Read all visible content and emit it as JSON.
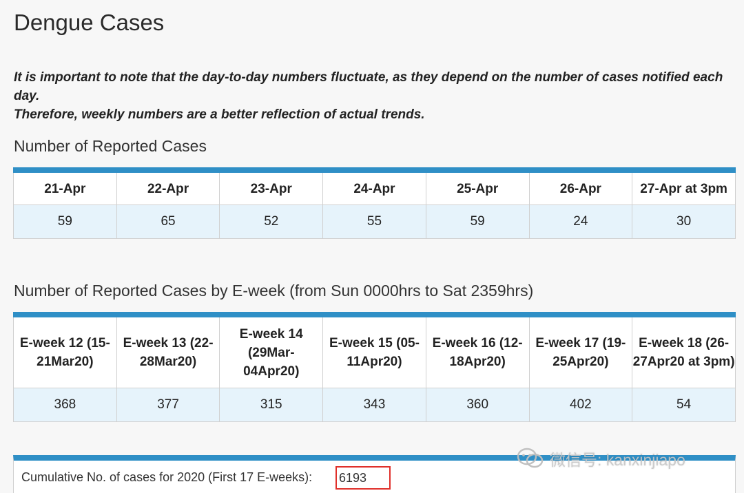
{
  "page": {
    "title": "Dengue Cases",
    "note_line1": "It is important to note that the day-to-day numbers fluctuate, as they depend on the number of cases notified each day.",
    "note_line2": "Therefore, weekly numbers are a better reflection of actual trends."
  },
  "daily": {
    "heading": "Number of Reported Cases",
    "headers": [
      "21-Apr",
      "22-Apr",
      "23-Apr",
      "24-Apr",
      "25-Apr",
      "26-Apr",
      "27-Apr at 3pm"
    ],
    "values": [
      "59",
      "65",
      "52",
      "55",
      "59",
      "24",
      "30"
    ]
  },
  "weekly": {
    "heading": "Number of Reported Cases by E-week (from Sun 0000hrs to Sat 2359hrs)",
    "headers": [
      "E-week 12 (15-21Mar20)",
      "E-week 13 (22-28Mar20)",
      "E-week 14 (29Mar-04Apr20)",
      "E-week 15 (05-11Apr20)",
      "E-week 16 (12-18Apr20)",
      "E-week 17 (19-25Apr20)",
      "E-week 18 (26-27Apr20 at 3pm)"
    ],
    "values": [
      "368",
      "377",
      "315",
      "343",
      "360",
      "402",
      "54"
    ]
  },
  "cumulative": {
    "label": "Cumulative No. of cases for 2020 (First 17 E-weeks):",
    "value": "6193",
    "highlight_color": "#e0302a"
  },
  "watermark": {
    "text": "微信号: kanxinjiapo",
    "icon": "wechat-icon"
  },
  "colors": {
    "accent": "#2f8fc6",
    "value_row_bg": "#e6f3fb"
  }
}
